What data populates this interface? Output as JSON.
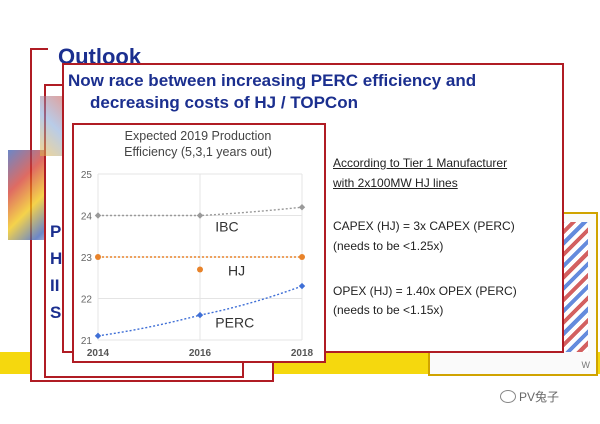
{
  "background": {
    "back_slide_title": "Outlook",
    "side_letters": [
      "P",
      "H",
      "II",
      "S"
    ],
    "right_slide_caption": "W"
  },
  "main": {
    "title_line1": "Now race between increasing PERC efficiency and",
    "title_line2": "decreasing costs of HJ / TOPCon",
    "note_line1": "According to Tier 1 Manufacturer",
    "note_line2": "with 2x100MW HJ lines",
    "capex_line1": "CAPEX (HJ) = 3x CAPEX (PERC)",
    "capex_line2": "(needs to be <1.25x)",
    "opex_line1": "OPEX (HJ) = 1.40x OPEX (PERC)",
    "opex_line2": "(needs to be <1.15x)"
  },
  "chart_data": {
    "type": "line",
    "title_line1": "Expected 2019 Production",
    "title_line2": "Efficiency (5,3,1 years out)",
    "x": [
      2014,
      2016,
      2018
    ],
    "xticks": [
      "2014",
      "2016",
      "2018"
    ],
    "yticks": [
      "21",
      "22",
      "23",
      "24",
      "25"
    ],
    "ylim": [
      21,
      25
    ],
    "xlim": [
      2014,
      2018
    ],
    "series": [
      {
        "name": "IBC",
        "color": "#9a9a9a",
        "points": [
          24.0,
          24.0,
          24.2
        ]
      },
      {
        "name": "HJ",
        "color": "#e8832a",
        "points": [
          23.0,
          22.7,
          23.0
        ]
      },
      {
        "name": "PERC",
        "color": "#3f6fd6",
        "points": [
          21.1,
          21.6,
          22.3
        ]
      }
    ],
    "grid": true
  },
  "watermark": "PV兔子"
}
